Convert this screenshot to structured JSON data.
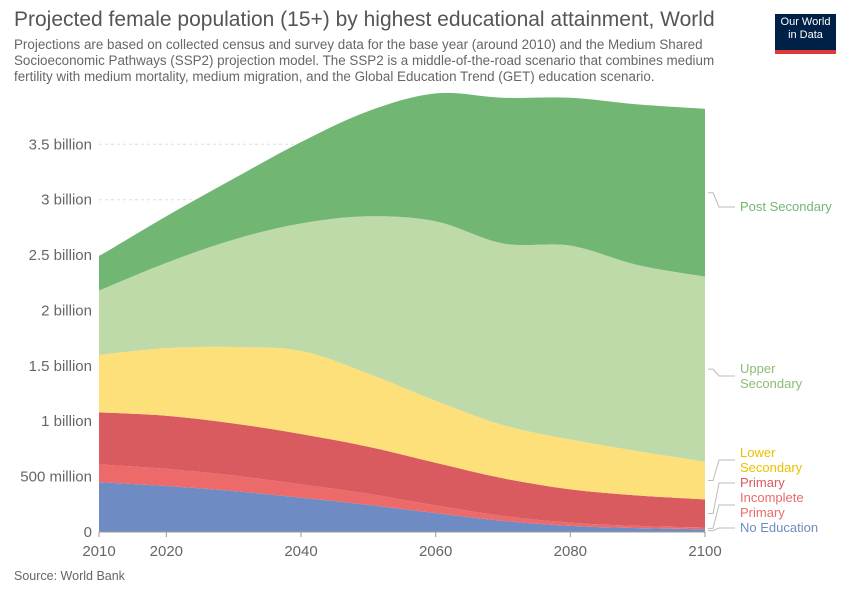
{
  "title": "Projected female population (15+) by highest educational attainment, World",
  "subtitle": "Projections are based on collected census and survey data for the base year (around 2010) and the Medium Shared Socioeconomic Pathways (SSP2) projection model. The SSP2 is a middle-of-the-road scenario that combines medium fertility with medium mortality, medium migration, and the Global Education Trend (GET) education scenario.",
  "logo": {
    "line1": "Our World",
    "line2": "in Data"
  },
  "source": "Source: World Bank",
  "colors": {
    "no_education": "#6e8cc3",
    "primary_incomplete": "#ec6a6a",
    "primary": "#d95a5f",
    "lower_secondary": "#fde07a",
    "upper_secondary": "#bddaa8",
    "post_secondary": "#72b674"
  },
  "chart_data": {
    "type": "area",
    "stacked": true,
    "x": [
      2010,
      2020,
      2030,
      2040,
      2050,
      2060,
      2070,
      2080,
      2090,
      2100
    ],
    "x_ticks": [
      "2010",
      "2020",
      "2040",
      "2060",
      "2080",
      "2100"
    ],
    "y_ticks": [
      "0",
      "500 million",
      "1 billion",
      "1.5 billion",
      "2 billion",
      "2.5 billion",
      "3 billion",
      "3.5 billion"
    ],
    "ylim": [
      0,
      3900000000
    ],
    "xlim": [
      2010,
      2100
    ],
    "grid": true,
    "series": [
      {
        "name": "No Education",
        "key": "no_education",
        "values": [
          450000000,
          415000000,
          370000000,
          310000000,
          245000000,
          170000000,
          100000000,
          55000000,
          35000000,
          25000000
        ]
      },
      {
        "name": "Primary Incomplete",
        "key": "primary_incomplete",
        "values": [
          160000000,
          155000000,
          140000000,
          120000000,
          100000000,
          70000000,
          45000000,
          30000000,
          20000000,
          15000000
        ]
      },
      {
        "name": "Primary",
        "key": "primary",
        "values": [
          470000000,
          480000000,
          470000000,
          455000000,
          425000000,
          385000000,
          340000000,
          300000000,
          275000000,
          255000000
        ]
      },
      {
        "name": "Lower Secondary",
        "key": "lower_secondary",
        "values": [
          520000000,
          610000000,
          690000000,
          750000000,
          660000000,
          560000000,
          480000000,
          450000000,
          400000000,
          340000000
        ]
      },
      {
        "name": "Upper Secondary",
        "key": "upper_secondary",
        "values": [
          580000000,
          770000000,
          970000000,
          1150000000,
          1420000000,
          1620000000,
          1640000000,
          1750000000,
          1680000000,
          1670000000
        ]
      },
      {
        "name": "Post Secondary",
        "key": "post_secondary",
        "values": [
          310000000,
          420000000,
          550000000,
          735000000,
          950000000,
          1155000000,
          1315000000,
          1335000000,
          1450000000,
          1515000000
        ]
      }
    ],
    "legend_placement": "right",
    "legend_labels": [
      {
        "key": "post_secondary",
        "lines": [
          "Post Secondary"
        ]
      },
      {
        "key": "upper_secondary",
        "lines": [
          "Upper",
          "Secondary"
        ]
      },
      {
        "key": "lower_secondary",
        "lines": [
          "Lower",
          "Secondary"
        ]
      },
      {
        "key": "primary",
        "lines": [
          "Primary"
        ]
      },
      {
        "key": "primary_incomplete",
        "lines": [
          "Incomplete",
          "Primary"
        ]
      },
      {
        "key": "no_education",
        "lines": [
          "No Education"
        ]
      }
    ]
  }
}
